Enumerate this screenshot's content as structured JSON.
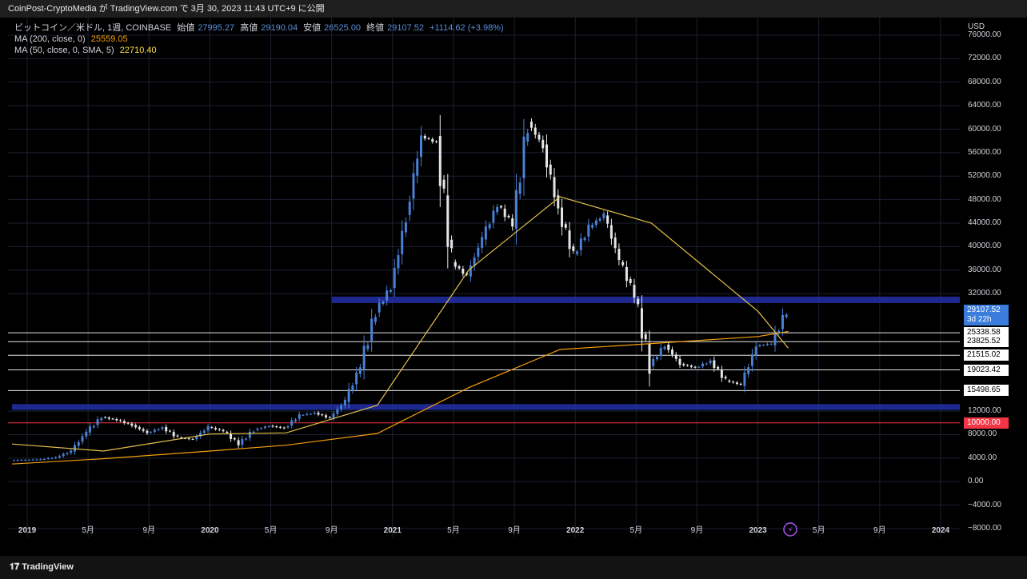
{
  "header": {
    "text": "CoinPost-CryptoMedia が TradingView.com で 3月 30, 2023 11:43 UTC+9 に公開"
  },
  "legend": {
    "symbol": "ビットコイン／米ドル, 1週, COINBASE",
    "open_label": "始値",
    "open": "27995.27",
    "high_label": "高値",
    "high": "29190.04",
    "low_label": "安値",
    "low": "26525.00",
    "close_label": "終値",
    "close": "29107.52",
    "change": "+1114.62 (+3.98%)",
    "ma200_label": "MA (200, close, 0)",
    "ma200_value": "25559.05",
    "ma50_label": "MA (50, close, 0, SMA, 5)",
    "ma50_value": "22710.40"
  },
  "footer": {
    "brand": "TradingView"
  },
  "colors": {
    "bull": "#4a7fd4",
    "bear": "#e6e6e6",
    "ma200": "#f59e0b",
    "ma50": "#e3c04a",
    "zone": "#2330a8",
    "accent_red": "#f23645",
    "badge": "#3b7ddd"
  },
  "chart_data": {
    "type": "candlestick",
    "currency": "USD",
    "timeframe": "1週",
    "x_tick_labels": [
      "2019",
      "5月",
      "9月",
      "2020",
      "5月",
      "9月",
      "2021",
      "5月",
      "9月",
      "2022",
      "5月",
      "9月",
      "2023",
      "5月",
      "9月",
      "2024"
    ],
    "y_ticks": [
      76000,
      72000,
      68000,
      64000,
      60000,
      56000,
      52000,
      48000,
      44000,
      40000,
      36000,
      32000,
      12000,
      8000,
      4000,
      0,
      -4000,
      -8000
    ],
    "y_tick_labels": [
      "76000.00",
      "72000.00",
      "68000.00",
      "64000.00",
      "60000.00",
      "56000.00",
      "52000.00",
      "48000.00",
      "44000.00",
      "40000.00",
      "36000.00",
      "32000.00",
      "12000.00",
      "8000.00",
      "4000.00",
      "0.00",
      "−4000.00",
      "−8000.00"
    ],
    "ylim": [
      -9500,
      79000
    ],
    "last_price": "29107.52",
    "countdown": "3d 22h",
    "horizontal_levels": [
      {
        "value": 25338.58,
        "label": "25338.58"
      },
      {
        "value": 23825.52,
        "label": "23825.52"
      },
      {
        "value": 21515.02,
        "label": "21515.02"
      },
      {
        "value": 19023.42,
        "label": "19023.42"
      },
      {
        "value": 15498.65,
        "label": "15498.65"
      },
      {
        "value": 10000.0,
        "label": "10000.00",
        "highlight": true
      }
    ],
    "zones": [
      {
        "from": 30400,
        "to": 31500,
        "start": "2020-09"
      },
      {
        "from": 12200,
        "to": 13200,
        "start": "2018-12"
      }
    ],
    "weekly_close": [
      [
        "2018-12",
        3600
      ],
      [
        "2019-01",
        3700
      ],
      [
        "2019-02",
        3800
      ],
      [
        "2019-03",
        4100
      ],
      [
        "2019-04",
        5200
      ],
      [
        "2019-05",
        8500
      ],
      [
        "2019-06",
        11000
      ],
      [
        "2019-07",
        10500
      ],
      [
        "2019-08",
        9600
      ],
      [
        "2019-09",
        8300
      ],
      [
        "2019-10",
        9200
      ],
      [
        "2019-11",
        7500
      ],
      [
        "2019-12",
        7200
      ],
      [
        "2020-01",
        9300
      ],
      [
        "2020-02",
        8600
      ],
      [
        "2020-03",
        6400
      ],
      [
        "2020-04",
        8800
      ],
      [
        "2020-05",
        9500
      ],
      [
        "2020-06",
        9100
      ],
      [
        "2020-07",
        11300
      ],
      [
        "2020-08",
        11700
      ],
      [
        "2020-09",
        10800
      ],
      [
        "2020-10",
        13800
      ],
      [
        "2020-11",
        19700
      ],
      [
        "2020-12",
        29000
      ],
      [
        "2021-01",
        33100
      ],
      [
        "2021-02",
        45000
      ],
      [
        "2021-03",
        58800
      ],
      [
        "2021-04",
        57700
      ],
      [
        "2021-05",
        37300
      ],
      [
        "2021-06",
        35000
      ],
      [
        "2021-07",
        41500
      ],
      [
        "2021-08",
        47100
      ],
      [
        "2021-09",
        43800
      ],
      [
        "2021-10",
        61300
      ],
      [
        "2021-11",
        57000
      ],
      [
        "2021-12",
        46200
      ],
      [
        "2022-01",
        38500
      ],
      [
        "2022-02",
        43200
      ],
      [
        "2022-03",
        45500
      ],
      [
        "2022-04",
        37700
      ],
      [
        "2022-05",
        31800
      ],
      [
        "2022-06",
        19800
      ],
      [
        "2022-07",
        23300
      ],
      [
        "2022-08",
        20000
      ],
      [
        "2022-09",
        19400
      ],
      [
        "2022-10",
        20500
      ],
      [
        "2022-11",
        17200
      ],
      [
        "2022-12",
        16500
      ],
      [
        "2023-01",
        23100
      ],
      [
        "2023-02",
        23500
      ],
      [
        "2023-03",
        29100
      ]
    ],
    "ma200_close": [
      [
        "2018-12",
        3000
      ],
      [
        "2019-06",
        3900
      ],
      [
        "2020-01",
        5200
      ],
      [
        "2020-06",
        6200
      ],
      [
        "2020-12",
        8200
      ],
      [
        "2021-06",
        16000
      ],
      [
        "2021-12",
        22500
      ],
      [
        "2022-06",
        23500
      ],
      [
        "2023-01",
        24700
      ],
      [
        "2023-03",
        25559
      ]
    ],
    "ma50_close": [
      [
        "2018-12",
        6400
      ],
      [
        "2019-06",
        5200
      ],
      [
        "2020-01",
        8100
      ],
      [
        "2020-06",
        8300
      ],
      [
        "2020-12",
        13000
      ],
      [
        "2021-06",
        36000
      ],
      [
        "2021-12",
        48500
      ],
      [
        "2022-06",
        44000
      ],
      [
        "2023-01",
        29000
      ],
      [
        "2023-03",
        22710
      ]
    ]
  }
}
